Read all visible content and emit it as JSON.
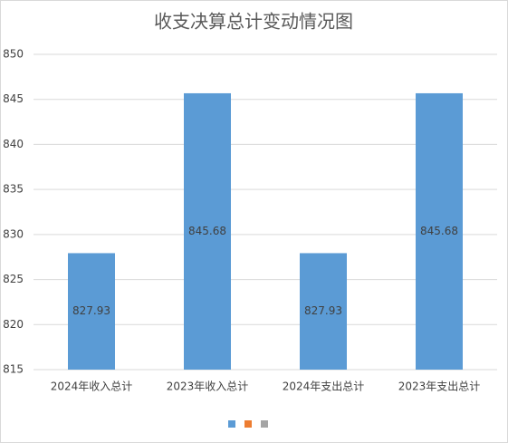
{
  "chart_data": {
    "type": "bar",
    "title": "收支决算总计变动情况图",
    "categories": [
      "2024年收入总计",
      "2023年收入总计",
      "2024年支出总计",
      "2023年支出总计"
    ],
    "values": [
      827.93,
      845.68,
      827.93,
      845.68
    ],
    "color": "#5b9bd5",
    "ylim": [
      815,
      850
    ],
    "yticks": [
      815,
      820,
      825,
      830,
      835,
      840,
      845,
      850
    ],
    "grid": true,
    "legend_colors": [
      "#5b9bd5",
      "#ed7d31",
      "#a5a5a5"
    ]
  }
}
